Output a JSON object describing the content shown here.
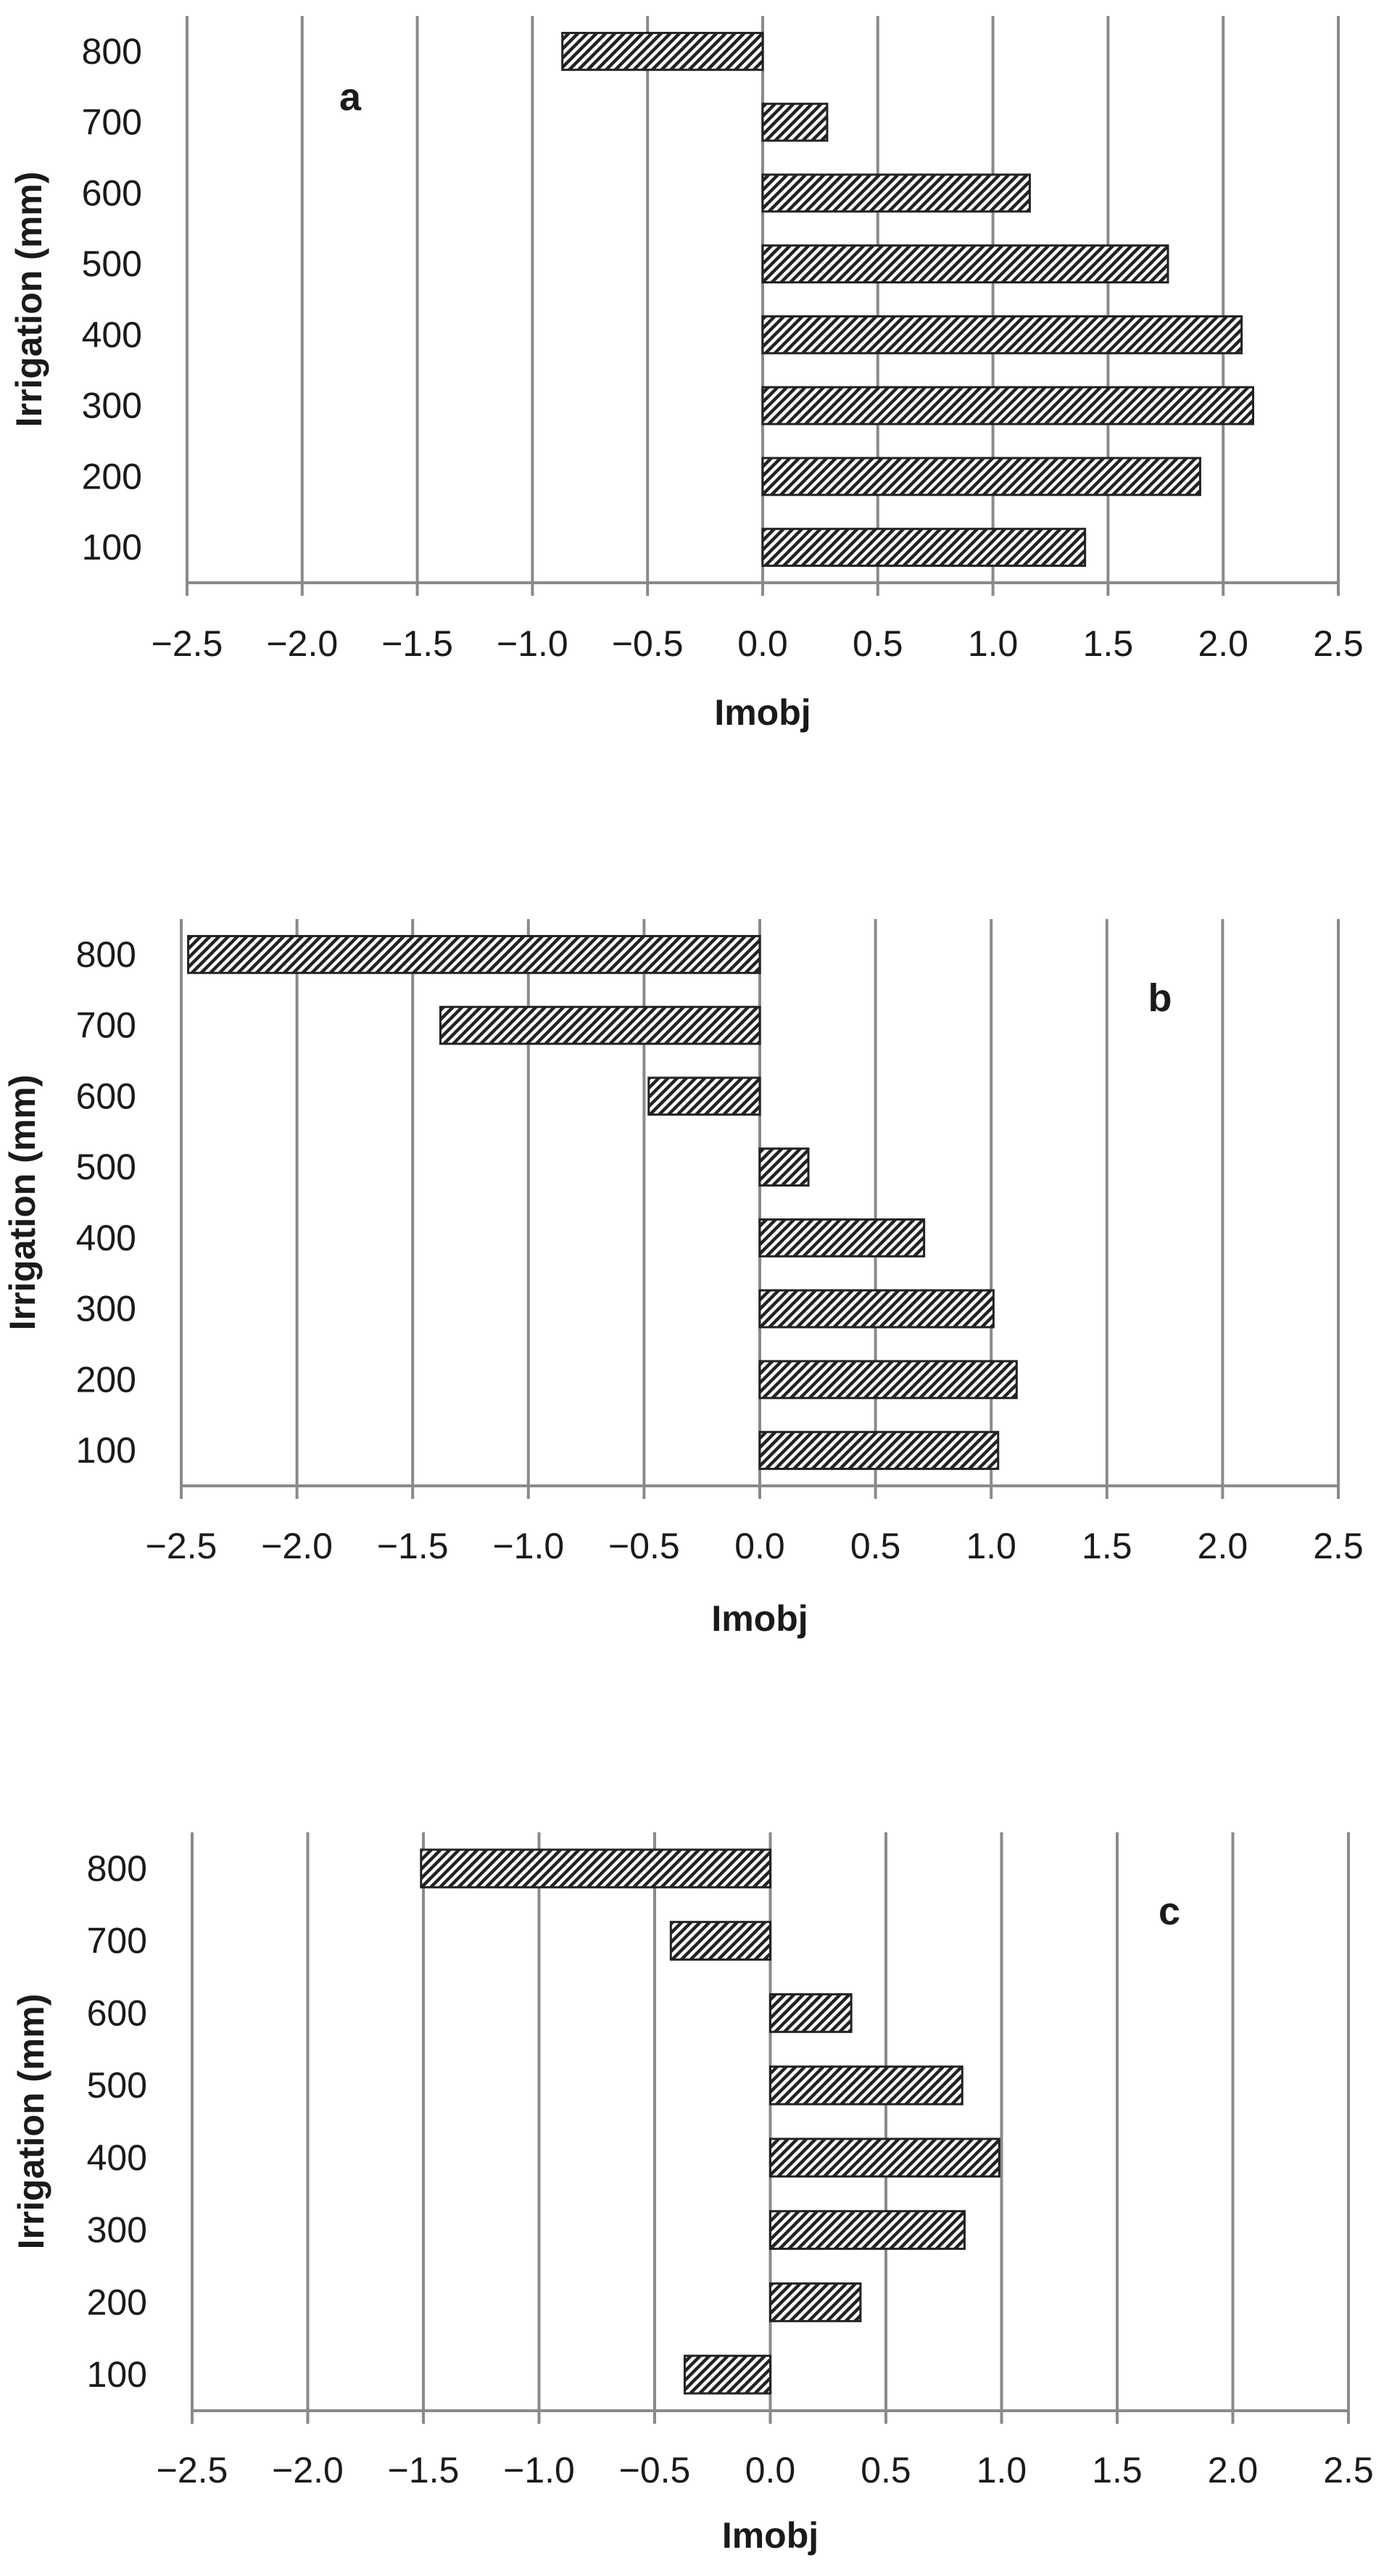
{
  "chart_data": [
    {
      "type": "bar",
      "orientation": "horizontal",
      "panel_label": "a",
      "xlabel": "Imobj",
      "ylabel": "Irrigation (mm)",
      "xlim": [
        -2.5,
        2.5
      ],
      "x_ticks": [
        "−2.5",
        "−2.0",
        "−1.5",
        "−1.0",
        "−0.5",
        "0.0",
        "0.5",
        "1.0",
        "1.5",
        "2.0",
        "2.5"
      ],
      "categories": [
        "100",
        "200",
        "300",
        "400",
        "500",
        "600",
        "700",
        "800"
      ],
      "values": [
        1.4,
        1.9,
        2.13,
        2.08,
        1.76,
        1.16,
        0.28,
        -0.87
      ],
      "grid": "vertical",
      "bar_pattern": "diagonal-hatch"
    },
    {
      "type": "bar",
      "orientation": "horizontal",
      "panel_label": "b",
      "xlabel": "Imobj",
      "ylabel": "Irrigation (mm)",
      "xlim": [
        -2.5,
        2.5
      ],
      "x_ticks": [
        "−2.5",
        "−2.0",
        "−1.5",
        "−1.0",
        "−0.5",
        "0.0",
        "0.5",
        "1.0",
        "1.5",
        "2.0",
        "2.5"
      ],
      "categories": [
        "100",
        "200",
        "300",
        "400",
        "500",
        "600",
        "700",
        "800"
      ],
      "values": [
        1.03,
        1.11,
        1.01,
        0.71,
        0.21,
        -0.48,
        -1.38,
        -2.47
      ],
      "grid": "vertical",
      "bar_pattern": "diagonal-hatch"
    },
    {
      "type": "bar",
      "orientation": "horizontal",
      "panel_label": "c",
      "xlabel": "Imobj",
      "ylabel": "Irrigation (mm)",
      "xlim": [
        -2.5,
        2.5
      ],
      "x_ticks": [
        "−2.5",
        "−2.0",
        "−1.5",
        "−1.0",
        "−0.5",
        "0.0",
        "0.5",
        "1.0",
        "1.5",
        "2.0",
        "2.5"
      ],
      "categories": [
        "100",
        "200",
        "300",
        "400",
        "500",
        "600",
        "700",
        "800"
      ],
      "values": [
        -0.37,
        0.39,
        0.84,
        0.99,
        0.83,
        0.35,
        -0.43,
        -1.51
      ],
      "grid": "vertical",
      "bar_pattern": "diagonal-hatch"
    }
  ]
}
